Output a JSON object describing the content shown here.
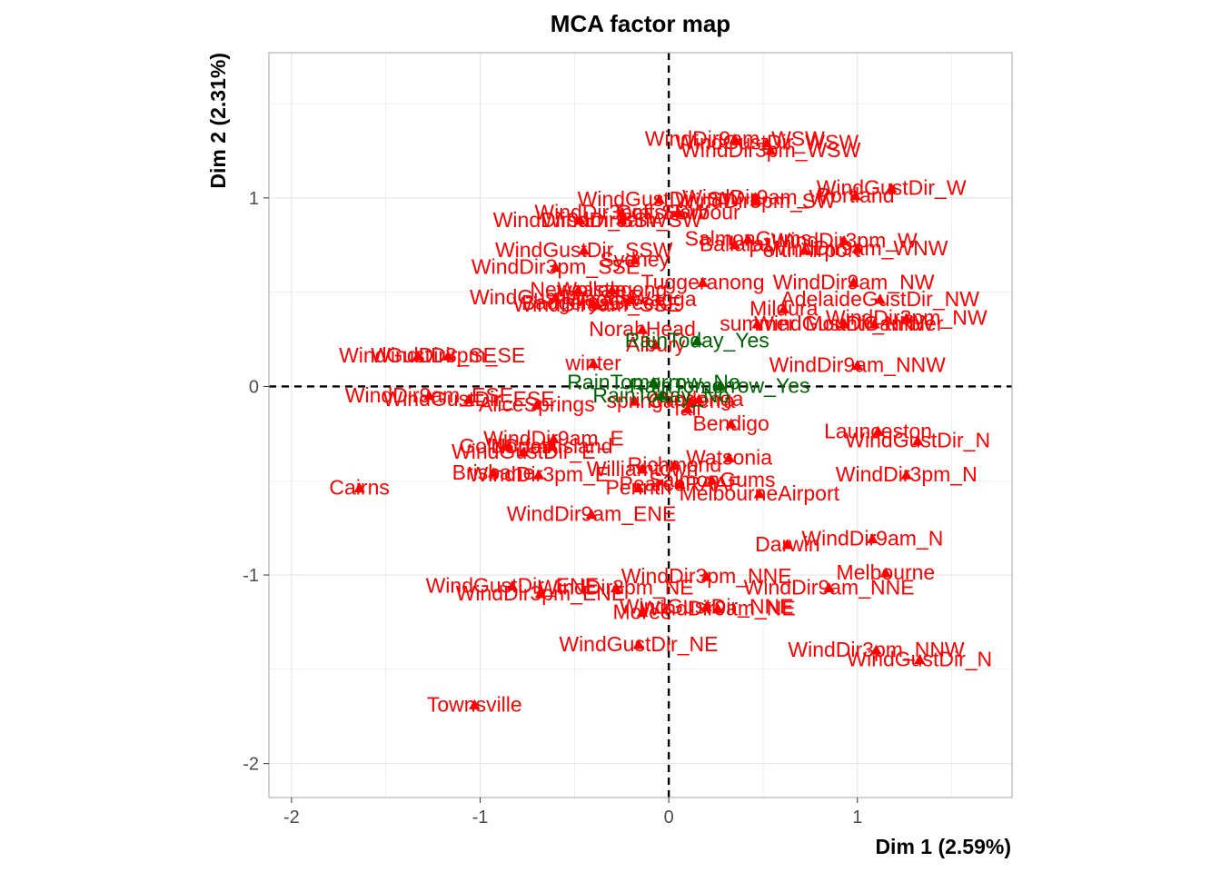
{
  "chart_data": {
    "type": "scatter",
    "title": "MCA factor map",
    "xlabel": "Dim 1 (2.59%)",
    "ylabel": "Dim 2 (2.31%)",
    "xlim": [
      -2.12,
      1.82
    ],
    "ylim": [
      -2.18,
      1.77
    ],
    "xticks": [
      -2,
      -1,
      0,
      1
    ],
    "yticks": [
      -2,
      -1,
      0,
      1
    ],
    "xtick_labels": [
      "-2",
      "-1",
      "0",
      "1"
    ],
    "ytick_labels": [
      "-2",
      "-1",
      "0",
      "1"
    ],
    "grid": true,
    "reference_lines": {
      "x": 0,
      "y": 0,
      "style": "dashed"
    },
    "colors": {
      "categories": "#ff0000",
      "supplementary": "#006400",
      "panel_border": "#b3b3b3",
      "grid": "#e5e5e5",
      "refline": "#000000"
    },
    "series": [
      {
        "group": "categories",
        "color": "#ff0000",
        "points": [
          {
            "label": "WindDir9am_WSW",
            "x": 0.35,
            "y": 1.31
          },
          {
            "label": "WindGustDir_WSW",
            "x": 0.52,
            "y": 1.29
          },
          {
            "label": "WindDir3pm_WSW",
            "x": 0.54,
            "y": 1.25
          },
          {
            "label": "WindGustDir_SW",
            "x": -0.05,
            "y": 0.99
          },
          {
            "label": "WindDir3pm_SSW",
            "x": -0.25,
            "y": 0.92
          },
          {
            "label": "WindDir9am_SW",
            "x": -0.25,
            "y": 0.88
          },
          {
            "label": "WindDir3pm_SW",
            "x": 0.46,
            "y": 0.98
          },
          {
            "label": "WindDir9am_W",
            "x": 0.46,
            "y": 1.0
          },
          {
            "label": "WindGustDir_W",
            "x": 1.18,
            "y": 1.05
          },
          {
            "label": "Portland",
            "x": 0.99,
            "y": 1.01
          },
          {
            "label": "WindDir9am_WNW",
            "x": 1.0,
            "y": 0.73
          },
          {
            "label": "WindDir3pm_W",
            "x": 0.93,
            "y": 0.77
          },
          {
            "label": "CoffsHarbour",
            "x": 0.05,
            "y": 0.92
          },
          {
            "label": "Ballarat",
            "x": 0.35,
            "y": 0.75
          },
          {
            "label": "SalmonGums",
            "x": 0.42,
            "y": 0.78
          },
          {
            "label": "PerthAirport",
            "x": 0.72,
            "y": 0.72
          },
          {
            "label": "Tuggeranong",
            "x": 0.18,
            "y": 0.55
          },
          {
            "label": "WindDir9am_NW",
            "x": 0.98,
            "y": 0.55
          },
          {
            "label": "AdelaideGustDir_NW",
            "x": 1.12,
            "y": 0.46
          },
          {
            "label": "MountGambier",
            "x": 1.09,
            "y": 0.33
          },
          {
            "label": "Mildura",
            "x": 0.61,
            "y": 0.41
          },
          {
            "label": "summer",
            "x": 0.47,
            "y": 0.33
          },
          {
            "label": "WindDir3pm_NW",
            "x": 1.26,
            "y": 0.36
          },
          {
            "label": "WindGustDir_NNW",
            "x": 0.93,
            "y": 0.33
          },
          {
            "label": "WindDir9am_NNW",
            "x": 1.0,
            "y": 0.11
          },
          {
            "label": "WindDir9am_SSW",
            "x": -0.47,
            "y": 0.88
          },
          {
            "label": "WindGustDir_SSW",
            "x": -0.45,
            "y": 0.72
          },
          {
            "label": "Sydney",
            "x": -0.18,
            "y": 0.67
          },
          {
            "label": "WindDir3pm_SSE",
            "x": -0.6,
            "y": 0.63
          },
          {
            "label": "Newcastle",
            "x": -0.48,
            "y": 0.51
          },
          {
            "label": "WindGustDir_SSE",
            "x": -0.6,
            "y": 0.47
          },
          {
            "label": "BadgerysCreek",
            "x": -0.4,
            "y": 0.44
          },
          {
            "label": "Wollongong",
            "x": -0.3,
            "y": 0.51
          },
          {
            "label": "WaggaWagga",
            "x": -0.2,
            "y": 0.46
          },
          {
            "label": "NorahHead",
            "x": -0.14,
            "y": 0.3
          },
          {
            "label": "WindDir9am_SSE",
            "x": -0.38,
            "y": 0.43
          },
          {
            "label": "Albury",
            "x": -0.07,
            "y": 0.22
          },
          {
            "label": "winter",
            "x": -0.4,
            "y": 0.12
          },
          {
            "label": "WindDir3pm_SE",
            "x": -1.17,
            "y": 0.16
          },
          {
            "label": "WindGustDir_SE",
            "x": -1.33,
            "y": 0.16
          },
          {
            "label": "WindDir9am_ESE",
            "x": -1.27,
            "y": -0.05
          },
          {
            "label": "WindGustDir_ESE",
            "x": -1.06,
            "y": -0.07
          },
          {
            "label": "AliceSprings",
            "x": -0.7,
            "y": -0.1
          },
          {
            "label": "spring",
            "x": -0.18,
            "y": -0.08
          },
          {
            "label": "GoldCoast",
            "x": -0.85,
            "y": -0.32
          },
          {
            "label": "WindDir9am_E",
            "x": -0.61,
            "y": -0.28
          },
          {
            "label": "WindGustDir_E",
            "x": -0.77,
            "y": -0.35
          },
          {
            "label": "NorfolkIsland",
            "x": -0.62,
            "y": -0.32
          },
          {
            "label": "WindDir3pm_E",
            "x": -0.69,
            "y": -0.47
          },
          {
            "label": "Brisbane",
            "x": -0.93,
            "y": -0.46
          },
          {
            "label": "Cairns",
            "x": -1.64,
            "y": -0.54
          },
          {
            "label": "Williamtown",
            "x": -0.14,
            "y": -0.44
          },
          {
            "label": "Penrith",
            "x": -0.16,
            "y": -0.54
          },
          {
            "label": "WindDir9am_ENE",
            "x": -0.41,
            "y": -0.68
          },
          {
            "label": "WindGustDir_ENE",
            "x": -0.83,
            "y": -1.06
          },
          {
            "label": "WindDir3pm_ENE",
            "x": -0.68,
            "y": -1.1
          },
          {
            "label": "WindDir3pm_NE",
            "x": -0.28,
            "y": -1.07
          },
          {
            "label": "Moree",
            "x": -0.14,
            "y": -1.2
          },
          {
            "label": "WindGustDir_NE",
            "x": -0.16,
            "y": -1.37
          },
          {
            "label": "Townsville",
            "x": -1.03,
            "y": -1.69
          },
          {
            "label": "Canberra",
            "x": 0.12,
            "y": -0.08
          },
          {
            "label": "Wodonga",
            "x": 0.16,
            "y": -0.07
          },
          {
            "label": "fall",
            "x": 0.1,
            "y": -0.12
          },
          {
            "label": "Bendigo",
            "x": 0.33,
            "y": -0.2
          },
          {
            "label": "Watsonia",
            "x": 0.32,
            "y": -0.38
          },
          {
            "label": "Richmond",
            "x": 0.03,
            "y": -0.42
          },
          {
            "label": "PearceRAAF",
            "x": 0.06,
            "y": -0.52
          },
          {
            "label": "SalmonGums",
            "x": 0.23,
            "y": -0.5
          },
          {
            "label": "MelbourneAirport",
            "x": 0.48,
            "y": -0.57
          },
          {
            "label": "Launceston",
            "x": 1.11,
            "y": -0.24
          },
          {
            "label": "WindGustDir_N",
            "x": 1.32,
            "y": -0.29
          },
          {
            "label": "WindDir3pm_N",
            "x": 1.26,
            "y": -0.47
          },
          {
            "label": "Darwin",
            "x": 0.63,
            "y": -0.84
          },
          {
            "label": "WindDir9am_N",
            "x": 1.08,
            "y": -0.81
          },
          {
            "label": "Melbourne",
            "x": 1.15,
            "y": -0.99
          },
          {
            "label": "WindDir9am_NNE",
            "x": 0.85,
            "y": -1.07
          },
          {
            "label": "WindDir3pm_NNE",
            "x": 0.2,
            "y": -1.01
          },
          {
            "label": "WindGustDir_NNE",
            "x": 0.2,
            "y": -1.17
          },
          {
            "label": "WindDir9am_NE",
            "x": 0.26,
            "y": -1.18
          },
          {
            "label": "WindDir3pm_NNW",
            "x": 1.1,
            "y": -1.4
          },
          {
            "label": "WindGustDir_N",
            "x": 1.33,
            "y": -1.45
          }
        ]
      },
      {
        "group": "supplementary",
        "color": "#006400",
        "points": [
          {
            "label": "RainToday_Yes",
            "x": 0.15,
            "y": 0.24
          },
          {
            "label": "RainTomorrow_Yes",
            "x": 0.27,
            "y": 0.0
          },
          {
            "label": "RainTomorrow_No",
            "x": -0.08,
            "y": 0.02
          },
          {
            "label": "RainToday_No",
            "x": -0.04,
            "y": -0.05
          }
        ]
      }
    ]
  }
}
